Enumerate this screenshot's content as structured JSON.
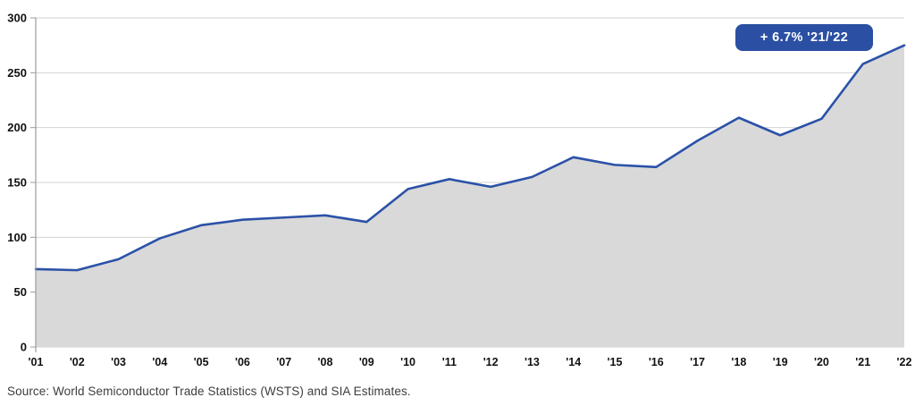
{
  "chart_data": {
    "type": "area",
    "title": "",
    "xlabel": "",
    "ylabel": "",
    "categories": [
      "'01",
      "'02",
      "'03",
      "'04",
      "'05",
      "'06",
      "'07",
      "'08",
      "'09",
      "'10",
      "'11",
      "'12",
      "'13",
      "'14",
      "'15",
      "'16",
      "'17",
      "'18",
      "'19",
      "'20",
      "'21",
      "'22"
    ],
    "values": [
      71,
      70,
      80,
      99,
      111,
      116,
      118,
      120,
      114,
      144,
      153,
      146,
      155,
      173,
      166,
      164,
      188,
      209,
      193,
      208,
      258,
      275
    ],
    "ylim": [
      0,
      300
    ],
    "y_ticks": [
      0,
      50,
      100,
      150,
      200,
      250,
      300
    ],
    "grid": true,
    "legend": "none",
    "annotation": "+ 6.7% '21/'22",
    "colors": {
      "line": "#2b51a8",
      "area_fill": "#d9d9d9",
      "gridline": "#d2d2d2",
      "axis": "#9b9b9b",
      "tick_label": "#111111",
      "badge_bg": "#2b4fa3",
      "badge_text": "#ffffff"
    }
  },
  "badge": {
    "label": "+ 6.7% '21/'22"
  },
  "source": {
    "text": "Source: World Semiconductor Trade Statistics (WSTS) and SIA Estimates."
  }
}
